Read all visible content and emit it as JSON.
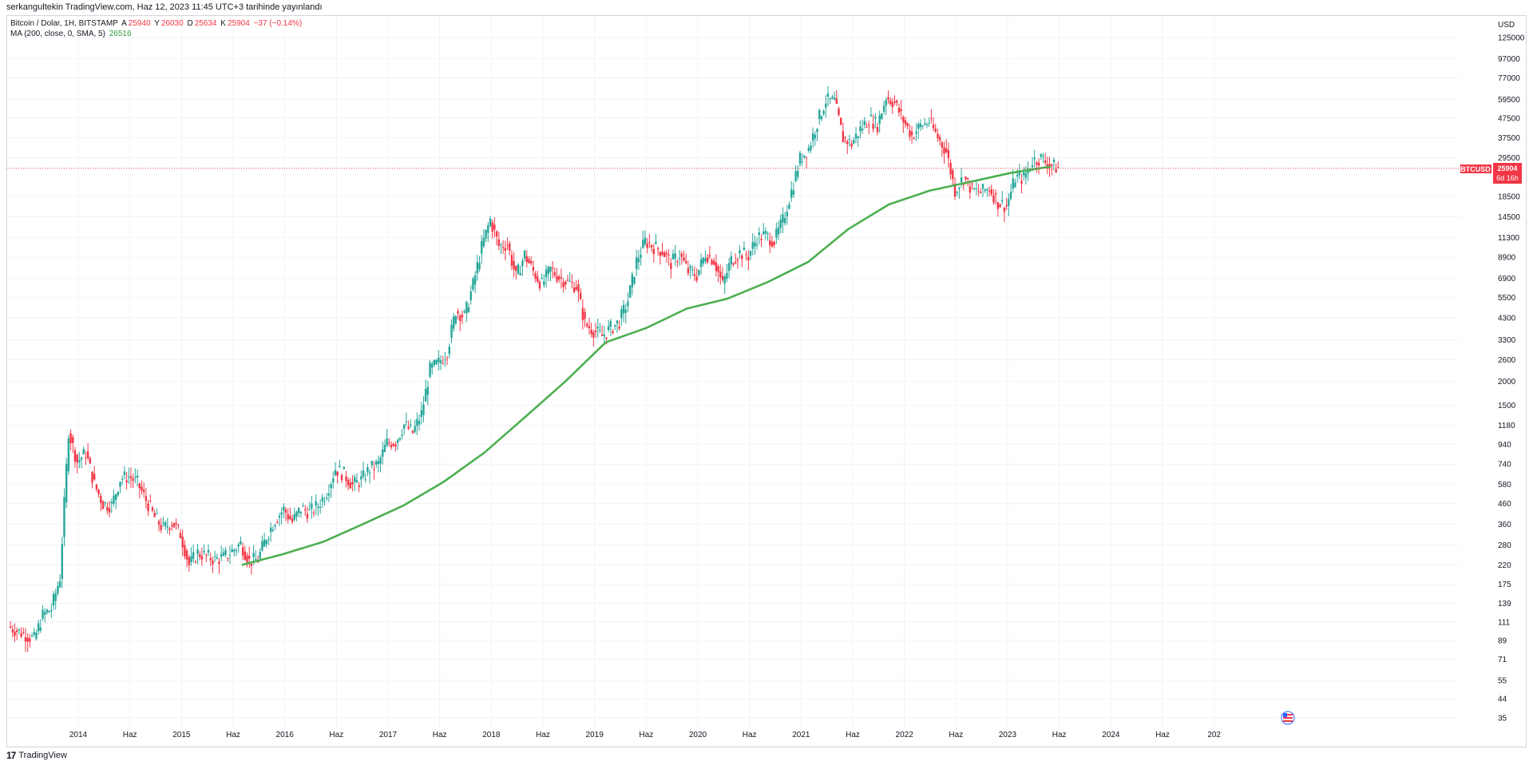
{
  "header": {
    "credit": "serkangultekin TradingView.com, Haz 12, 2023 11:45 UTC+3 tarihinde yayınlandı"
  },
  "legend": {
    "symbol_line": "Bitcoin / Dolar, 1H, BITSTAMP",
    "o_label": "A",
    "o_value": "25940",
    "h_label": "Y",
    "h_value": "26030",
    "l_label": "D",
    "l_value": "25634",
    "c_label": "K",
    "c_value": "25904",
    "change": "−37 (−0.14%)",
    "ma_line": "MA (200, close, 0, SMA, 5)",
    "ma_value": "26516"
  },
  "price_label": {
    "symbol": "BTCUSD",
    "price": "25904",
    "countdown": "6d 16h"
  },
  "footer": {
    "logo": "17",
    "brand": "TradingView"
  },
  "colors": {
    "up": "#26a69a",
    "down": "#f23645",
    "ma": "#4caf50",
    "grid": "#f0f3fa",
    "axis_text": "#131722"
  },
  "chart_data": {
    "type": "candlestick",
    "series": [
      {
        "name": "Bitcoin / Dolar, 1H, BITSTAMP",
        "kind": "weekly-candles",
        "x": [
          "2013-05",
          "2013-06",
          "2013-07",
          "2013-08",
          "2013-09",
          "2013-10",
          "2013-11",
          "2013-12",
          "2014-01",
          "2014-02",
          "2014-03",
          "2014-04",
          "2014-05",
          "2014-06",
          "2014-07",
          "2014-08",
          "2014-09",
          "2014-10",
          "2014-11",
          "2014-12",
          "2015-01",
          "2015-02",
          "2015-03",
          "2015-04",
          "2015-05",
          "2015-06",
          "2015-07",
          "2015-08",
          "2015-09",
          "2015-10",
          "2015-11",
          "2015-12",
          "2016-01",
          "2016-02",
          "2016-03",
          "2016-04",
          "2016-05",
          "2016-06",
          "2016-07",
          "2016-08",
          "2016-09",
          "2016-10",
          "2016-11",
          "2016-12",
          "2017-01",
          "2017-02",
          "2017-03",
          "2017-04",
          "2017-05",
          "2017-06",
          "2017-07",
          "2017-08",
          "2017-09",
          "2017-10",
          "2017-11",
          "2017-12",
          "2018-01",
          "2018-02",
          "2018-03",
          "2018-04",
          "2018-05",
          "2018-06",
          "2018-07",
          "2018-08",
          "2018-09",
          "2018-10",
          "2018-11",
          "2018-12",
          "2019-01",
          "2019-02",
          "2019-03",
          "2019-04",
          "2019-05",
          "2019-06",
          "2019-07",
          "2019-08",
          "2019-09",
          "2019-10",
          "2019-11",
          "2019-12",
          "2020-01",
          "2020-02",
          "2020-03",
          "2020-04",
          "2020-05",
          "2020-06",
          "2020-07",
          "2020-08",
          "2020-09",
          "2020-10",
          "2020-11",
          "2020-12",
          "2021-01",
          "2021-02",
          "2021-03",
          "2021-04",
          "2021-05",
          "2021-06",
          "2021-07",
          "2021-08",
          "2021-09",
          "2021-10",
          "2021-11",
          "2021-12",
          "2022-01",
          "2022-02",
          "2022-03",
          "2022-04",
          "2022-05",
          "2022-06",
          "2022-07",
          "2022-08",
          "2022-09",
          "2022-10",
          "2022-11",
          "2022-12",
          "2023-01",
          "2023-02",
          "2023-03",
          "2023-04",
          "2023-05",
          "2023-06"
        ],
        "close": [
          100,
          95,
          90,
          120,
          130,
          190,
          1100,
          760,
          850,
          580,
          460,
          450,
          620,
          640,
          590,
          480,
          390,
          340,
          370,
          320,
          220,
          255,
          245,
          235,
          240,
          260,
          285,
          230,
          235,
          310,
          380,
          430,
          370,
          435,
          415,
          450,
          530,
          700,
          655,
          575,
          610,
          700,
          740,
          960,
          970,
          1190,
          1080,
          1350,
          2300,
          2500,
          2880,
          4700,
          4350,
          6400,
          10000,
          14000,
          10200,
          10400,
          7000,
          9200,
          7500,
          6400,
          7700,
          7000,
          6600,
          6300,
          4000,
          3700,
          3450,
          3800,
          4100,
          5300,
          8500,
          10800,
          10100,
          9600,
          8300,
          9200,
          7500,
          7200,
          9300,
          8600,
          6400,
          8600,
          9400,
          9100,
          11300,
          11600,
          10800,
          13800,
          19700,
          29000,
          33000,
          45000,
          58800,
          57700,
          37300,
          35000,
          41500,
          47100,
          43800,
          61300,
          57000,
          46200,
          38500,
          43200,
          45500,
          37700,
          31800,
          19900,
          23300,
          20000,
          19400,
          20500,
          17200,
          16500,
          23100,
          23100,
          28500,
          29300,
          27200,
          25904
        ],
        "ma_200": {
          "start": "2015-08",
          "values": [
            220,
            250,
            290,
            360,
            450,
            600,
            850,
            1300,
            2000,
            3200,
            3800,
            4800,
            5400,
            6600,
            8400,
            12500,
            16800,
            19800,
            22000,
            24500,
            26516
          ]
        }
      }
    ],
    "y_ticks": [
      "125000",
      "97000",
      "77000",
      "59500",
      "47500",
      "37500",
      "29500",
      "18500",
      "14500",
      "11300",
      "8900",
      "6900",
      "5500",
      "4300",
      "3300",
      "2600",
      "2000",
      "1500",
      "1180",
      "940",
      "740",
      "580",
      "460",
      "360",
      "280",
      "220",
      "175",
      "139",
      "111",
      "89",
      "71",
      "55",
      "44",
      "35"
    ],
    "y_axis_title": "USD",
    "y_scale": "log",
    "x_ticks": [
      "2014",
      "Haz",
      "2015",
      "Haz",
      "2016",
      "Haz",
      "2017",
      "Haz",
      "2018",
      "Haz",
      "2019",
      "Haz",
      "2020",
      "Haz",
      "2021",
      "Haz",
      "2022",
      "Haz",
      "2023",
      "Haz",
      "2024",
      "Haz",
      "202"
    ],
    "current_price": 25904,
    "grid": true
  }
}
